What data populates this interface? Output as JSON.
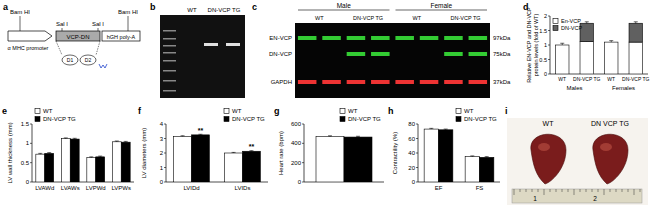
{
  "panel_labels": [
    "a",
    "b",
    "c",
    "d",
    "e",
    "f",
    "g",
    "h",
    "i"
  ],
  "construct": {
    "sites": [
      "Bam HI",
      "Sal I",
      "Sal I",
      "Bam HI"
    ],
    "promoter": "α MHC promoter",
    "insert": "VCP-DN",
    "polya": "hGH poly-A",
    "domains": [
      "D1",
      "D2"
    ]
  },
  "gel": {
    "lanes": [
      "WT",
      "DN-VCP TG"
    ]
  },
  "blot": {
    "sexes": [
      "Male",
      "Female"
    ],
    "lanes": [
      "WT",
      "DN-VCP TG",
      "WT",
      "DN-VCP TG"
    ],
    "rows": [
      {
        "label": "EN-VCP",
        "size": "97kDa"
      },
      {
        "label": "DN-VCP",
        "size": "75kDa"
      },
      {
        "label": "GAPDH",
        "size": "37kDa"
      }
    ]
  },
  "photo": {
    "labels": [
      "WT",
      "DN VCP TG"
    ],
    "ruler": [
      "1",
      "2"
    ]
  },
  "chart_data": [
    {
      "type": "bar",
      "stacked": true,
      "y_label": [
        "Relative EN-VCP and DN-VCP",
        "protein levels (fold of WT)"
      ],
      "categories": [
        "WT",
        "DN-VCP TG",
        "WT",
        "DN-VCP TG"
      ],
      "groups": [
        "Males",
        "Females"
      ],
      "series": [
        {
          "name": "En-VCP",
          "color": "#ffffff",
          "values": [
            1.0,
            1.12,
            1.1,
            1.1
          ],
          "errors": [
            0.06,
            0.05,
            0.05,
            0.04
          ]
        },
        {
          "name": "DN-VCP",
          "color": "#606060",
          "values": [
            0,
            0.63,
            0,
            0.65
          ],
          "errors": [
            null,
            0.05,
            null,
            0.05
          ]
        }
      ],
      "ylim": [
        0,
        2
      ],
      "yticks": [
        0,
        0.5,
        1,
        1.5,
        2
      ],
      "legend": "top-left"
    },
    {
      "type": "bar",
      "y_label": "LV wall thickness (mm)",
      "categories": [
        "LVAWd",
        "LVAWs",
        "LVPWd",
        "LVPWs"
      ],
      "series": [
        {
          "name": "WT",
          "color": "#ffffff",
          "values": [
            0.72,
            1.12,
            0.63,
            1.04
          ],
          "errors": [
            0.02,
            0.02,
            0.02,
            0.02
          ]
        },
        {
          "name": "DN-VCP TG",
          "color": "#000000",
          "values": [
            0.74,
            1.11,
            0.65,
            1.03
          ],
          "errors": [
            0.02,
            0.02,
            0.02,
            0.02
          ]
        }
      ],
      "ylim": [
        0,
        1.5
      ],
      "yticks": [
        0,
        0.5,
        1,
        1.5
      ],
      "legend": "top-left"
    },
    {
      "type": "bar",
      "y_label": "LV diameters (mm)",
      "categories": [
        "LVIDd",
        "LVIDs"
      ],
      "series": [
        {
          "name": "WT",
          "color": "#ffffff",
          "values": [
            3.15,
            2.0
          ],
          "errors": [
            0.04,
            0.04
          ]
        },
        {
          "name": "DN-VCP TG",
          "color": "#000000",
          "values": [
            3.25,
            2.12
          ],
          "errors": [
            0.04,
            0.04
          ],
          "annotations": [
            "**",
            "**"
          ]
        }
      ],
      "ylim": [
        0,
        4
      ],
      "yticks": [
        0,
        1,
        2,
        3,
        4
      ],
      "legend": "top-right"
    },
    {
      "type": "bar",
      "y_label": "Heart rate (bpm)",
      "categories": [
        null
      ],
      "series": [
        {
          "name": "WT",
          "color": "#ffffff",
          "values": [
            470
          ],
          "errors": [
            8
          ]
        },
        {
          "name": "DN-VCP TG",
          "color": "#000000",
          "values": [
            465
          ],
          "errors": [
            8
          ]
        }
      ],
      "ylim": [
        0,
        600
      ],
      "yticks": [
        0,
        200,
        400,
        600
      ],
      "legend": "top-right"
    },
    {
      "type": "bar",
      "y_label": "Contractility (%)",
      "categories": [
        "EF",
        "FS"
      ],
      "series": [
        {
          "name": "WT",
          "color": "#ffffff",
          "values": [
            73,
            35
          ],
          "errors": [
            1,
            1
          ]
        },
        {
          "name": "DN-VCP TG",
          "color": "#000000",
          "values": [
            72,
            34
          ],
          "errors": [
            1,
            1
          ]
        }
      ],
      "ylim": [
        0,
        80
      ],
      "yticks": [
        0,
        20,
        40,
        60,
        80
      ],
      "legend": "top-right"
    }
  ]
}
